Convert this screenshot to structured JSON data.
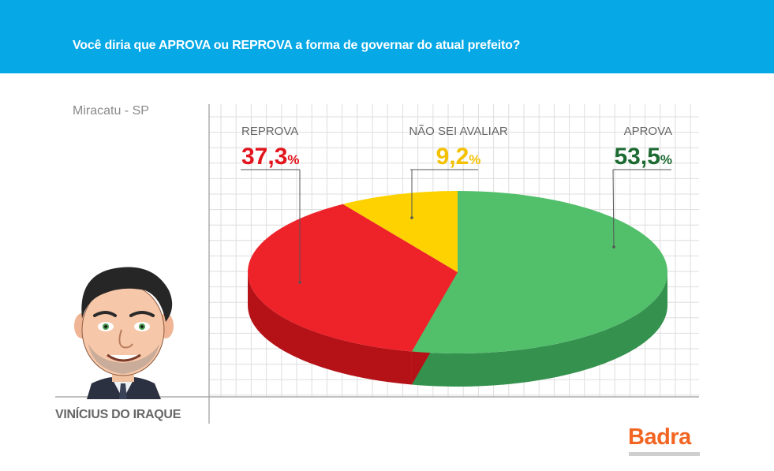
{
  "header": {
    "question": "Você diria que APROVA ou REPROVA a forma de governar do atual prefeito?",
    "background_color": "#06a8e6"
  },
  "location": "Miracatu - SP",
  "person": {
    "name": "VINÍCIUS DO IRAQUE",
    "avatar_icon": "caricature-portrait"
  },
  "brand": {
    "logo_text": "Badra",
    "color": "#f26522"
  },
  "chart_data": {
    "type": "pie",
    "style": "3d-exploded-perspective",
    "grid": true,
    "slices": [
      {
        "label": "APROVA",
        "value": 53.5,
        "display": "53,5",
        "unit": "%",
        "color": "#52bf6b",
        "side_color": "#35924e",
        "text_color": "#1d6b32"
      },
      {
        "label": "REPROVA",
        "value": 37.3,
        "display": "37,3",
        "unit": "%",
        "color": "#ee2229",
        "side_color": "#b51218",
        "text_color": "#e2141c"
      },
      {
        "label": "NÃO SEI AVALIAR",
        "value": 9.2,
        "display": "9,2",
        "unit": "%",
        "color": "#fdd200",
        "side_color": "#c9a400",
        "text_color": "#f4c100"
      }
    ]
  }
}
